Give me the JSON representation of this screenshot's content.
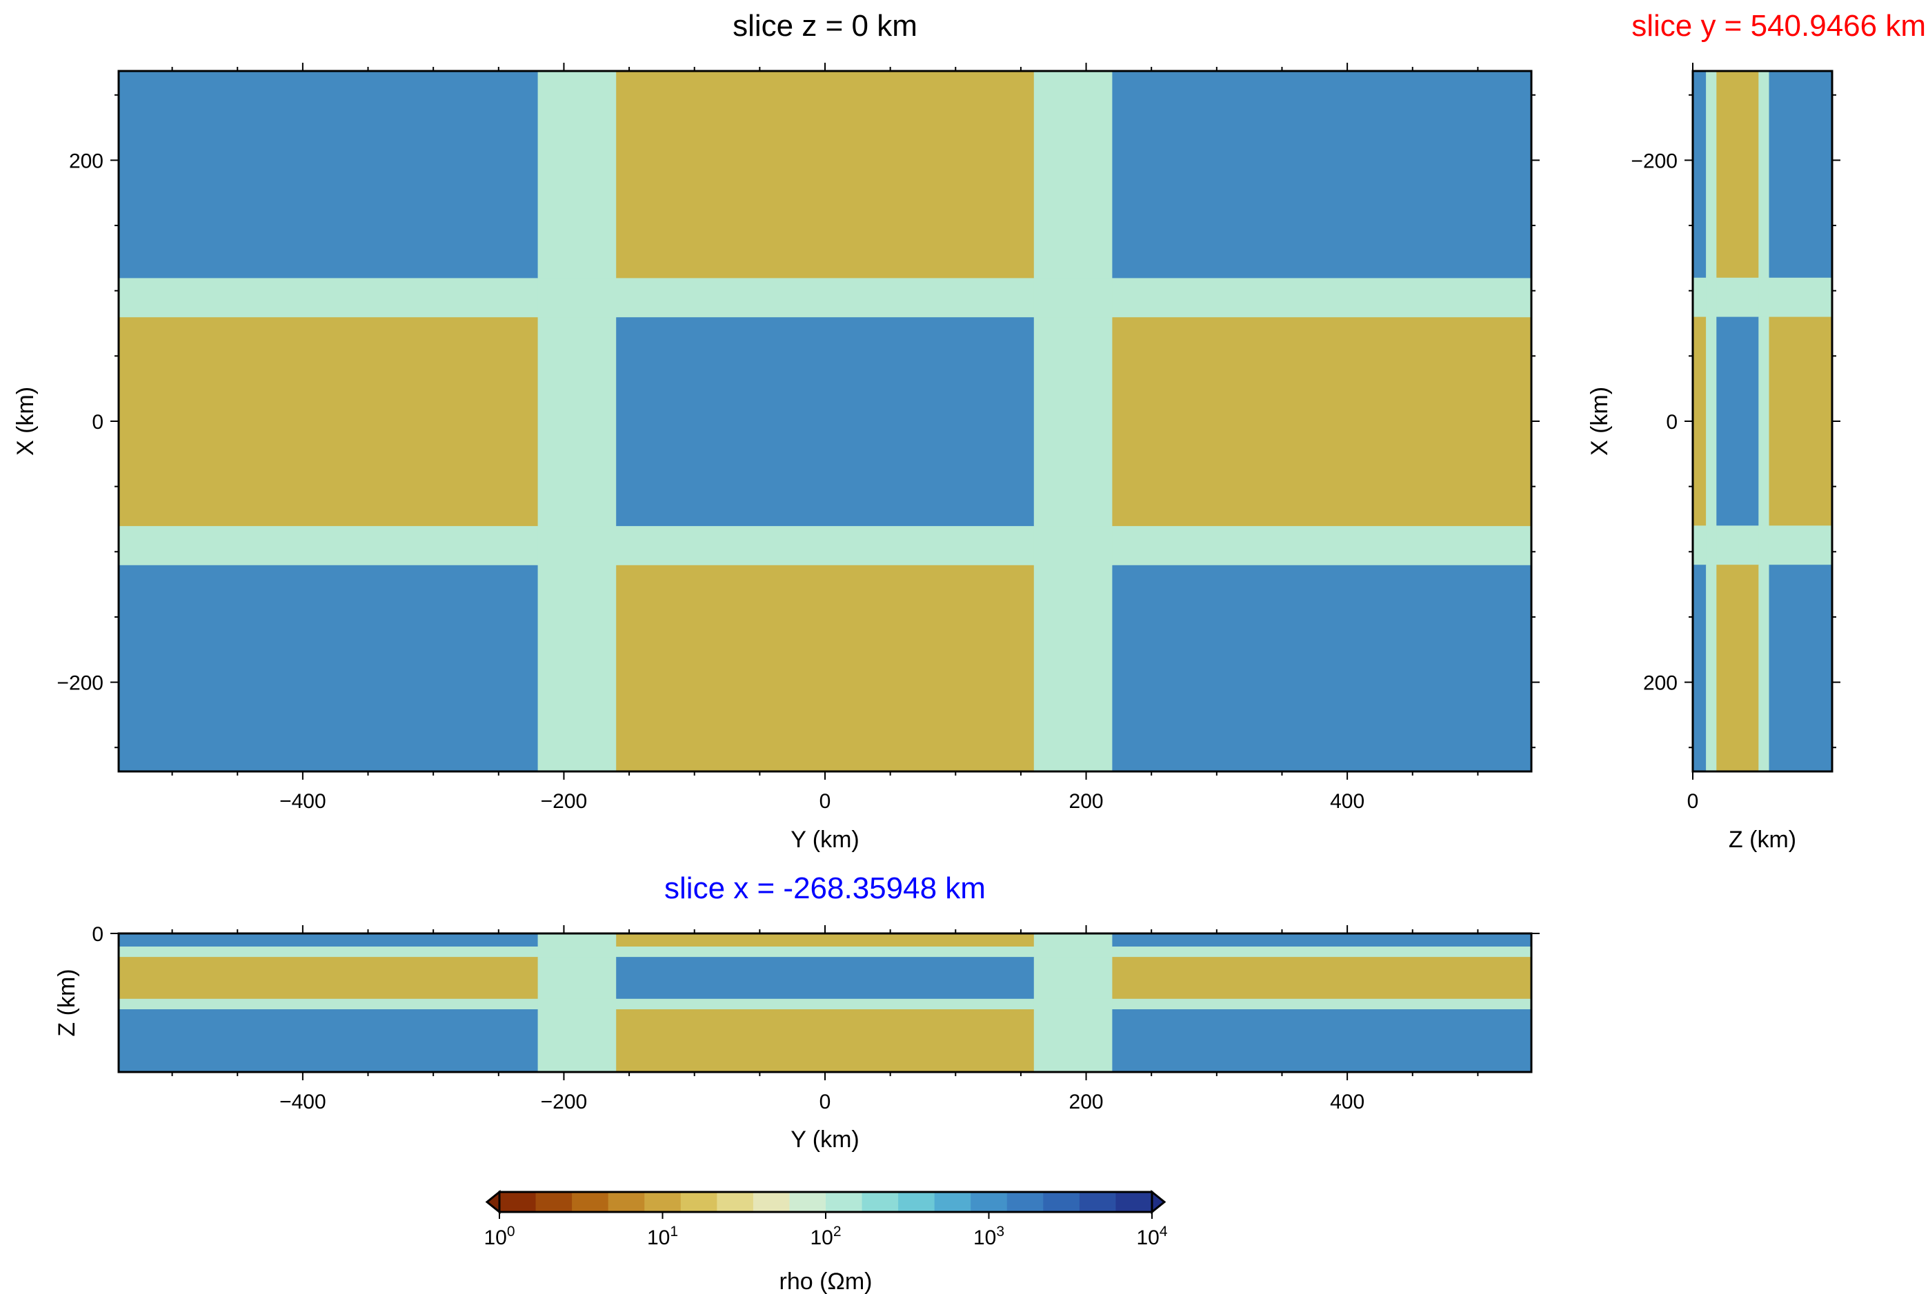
{
  "chart_data": [
    {
      "type": "heatmap",
      "panel": "map",
      "title": "slice z = 0 km",
      "title_color": "#000000",
      "xlabel": "Y (km)",
      "ylabel": "X (km)",
      "xlim": [
        -541,
        541
      ],
      "ylim": [
        -268.36,
        268.36
      ],
      "y_reversed": false,
      "xticks": [
        -400,
        -200,
        0,
        200,
        400
      ],
      "xtick_labels": [
        "−400",
        "−200",
        "0",
        "200",
        "400"
      ],
      "yticks": [
        -200,
        0,
        200
      ],
      "ytick_labels": [
        "−200",
        "0",
        "200"
      ],
      "x_edges": [
        -541,
        -220,
        -160,
        160,
        220,
        541
      ],
      "y_edges": [
        -268.36,
        -110,
        -80,
        80,
        110,
        268.36
      ],
      "cells": [
        [
          "B",
          "L",
          "G",
          "L",
          "B"
        ],
        [
          "L",
          "L",
          "L",
          "L",
          "L"
        ],
        [
          "G",
          "L",
          "B",
          "L",
          "G"
        ],
        [
          "L",
          "L",
          "L",
          "L",
          "L"
        ],
        [
          "B",
          "L",
          "G",
          "L",
          "B"
        ]
      ]
    },
    {
      "type": "heatmap",
      "panel": "side",
      "title": "slice y = 540.9466 km",
      "title_color": "#ff0000",
      "xlabel": "Z (km)",
      "ylabel": "X (km)",
      "xlim": [
        0,
        106
      ],
      "ylim": [
        -268.36,
        268.36
      ],
      "y_reversed": true,
      "xticks": [
        0
      ],
      "xtick_labels": [
        "0"
      ],
      "yticks": [
        -200,
        0,
        200
      ],
      "ytick_labels": [
        "−200",
        "0",
        "200"
      ],
      "x_edges": [
        0,
        10,
        18,
        50,
        58,
        106
      ],
      "y_edges": [
        -268.36,
        -110,
        -80,
        80,
        110,
        268.36
      ],
      "cells": [
        [
          "B",
          "L",
          "G",
          "L",
          "B"
        ],
        [
          "L",
          "L",
          "L",
          "L",
          "L"
        ],
        [
          "G",
          "L",
          "B",
          "L",
          "G"
        ],
        [
          "L",
          "L",
          "L",
          "L",
          "L"
        ],
        [
          "B",
          "L",
          "G",
          "L",
          "B"
        ]
      ]
    },
    {
      "type": "heatmap",
      "panel": "section",
      "title": "slice x = -268.35948 km",
      "title_color": "#0000ff",
      "xlabel": "Y (km)",
      "ylabel": "Z (km)",
      "xlim": [
        -541,
        541
      ],
      "ylim": [
        0,
        106
      ],
      "y_reversed": true,
      "xticks": [
        -400,
        -200,
        0,
        200,
        400
      ],
      "xtick_labels": [
        "−400",
        "−200",
        "0",
        "200",
        "400"
      ],
      "yticks": [
        0
      ],
      "ytick_labels": [
        "0"
      ],
      "x_edges": [
        -541,
        -220,
        -160,
        160,
        220,
        541
      ],
      "y_edges": [
        0,
        10,
        18,
        50,
        58,
        106
      ],
      "cells": [
        [
          "B",
          "L",
          "G",
          "L",
          "B"
        ],
        [
          "L",
          "L",
          "L",
          "L",
          "L"
        ],
        [
          "G",
          "L",
          "B",
          "L",
          "G"
        ],
        [
          "L",
          "L",
          "L",
          "L",
          "L"
        ],
        [
          "B",
          "L",
          "G",
          "L",
          "B"
        ]
      ]
    },
    {
      "type": "colorbar",
      "label": "rho (Ωm)",
      "scale": "log",
      "range": [
        1,
        10000
      ],
      "tick_values": [
        1,
        10,
        100,
        1000,
        10000
      ],
      "tick_labels": [
        {
          "base": "10",
          "exp": "0"
        },
        {
          "base": "10",
          "exp": "1"
        },
        {
          "base": "10",
          "exp": "2"
        },
        {
          "base": "10",
          "exp": "3"
        },
        {
          "base": "10",
          "exp": "4"
        }
      ],
      "colors": [
        "#8a2e05",
        "#9f4a0b",
        "#b36915",
        "#c28a2a",
        "#cda640",
        "#d9c25d",
        "#e3d88a",
        "#e6e6b8",
        "#cfecd2",
        "#b3e8d7",
        "#8ddbd7",
        "#6cc8d6",
        "#52acd2",
        "#4392c9",
        "#3a7cbf",
        "#3066b3",
        "#2a4fa3",
        "#243a91"
      ],
      "extend_low_color": "#7a2503",
      "extend_high_color": "#1f2f85"
    }
  ],
  "legend_colors": {
    "B": "#438ac1",
    "G": "#cab44b",
    "L": "#b9e9d3"
  }
}
